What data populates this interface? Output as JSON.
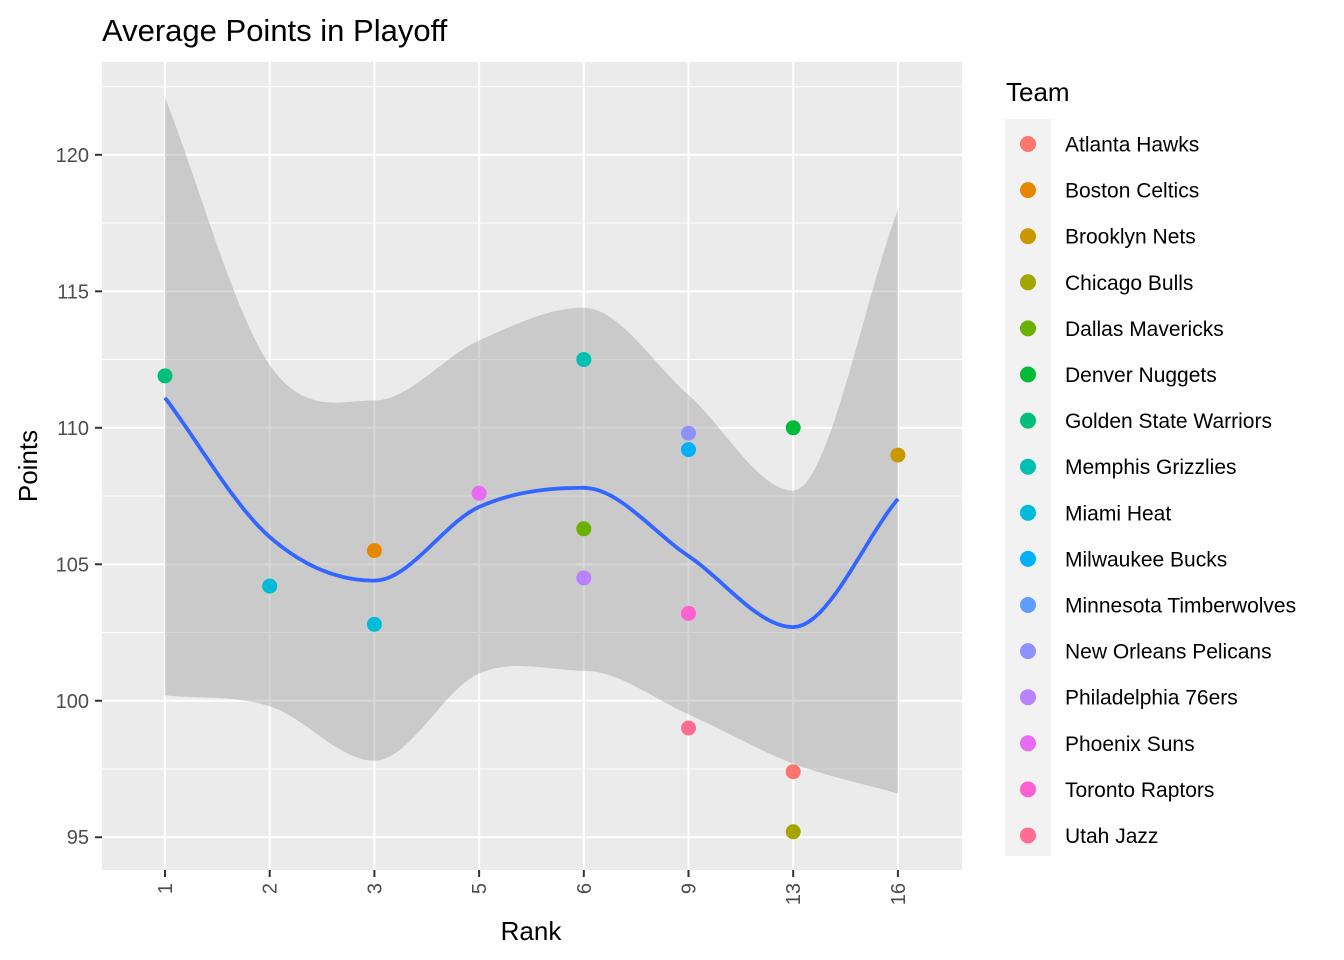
{
  "chart_data": {
    "type": "scatter",
    "title": "Average Points in Playoff",
    "xlabel": "Rank",
    "ylabel": "Points",
    "x_categories": [
      "1",
      "2",
      "3",
      "5",
      "6",
      "9",
      "13",
      "16"
    ],
    "ylim": [
      93.8,
      123.4
    ],
    "y_ticks": [
      95,
      100,
      105,
      110,
      115,
      120
    ],
    "grid": true,
    "legend": {
      "title": "Team",
      "position": "right"
    },
    "series": [
      {
        "name": "Atlanta Hawks",
        "color": "#F8766D",
        "points": [
          {
            "x": "13",
            "y": 97.4
          }
        ]
      },
      {
        "name": "Boston Celtics",
        "color": "#E58700",
        "points": [
          {
            "x": "3",
            "y": 105.5
          }
        ]
      },
      {
        "name": "Brooklyn Nets",
        "color": "#C99800",
        "points": [
          {
            "x": "16",
            "y": 109.0
          }
        ]
      },
      {
        "name": "Chicago Bulls",
        "color": "#A3A500",
        "points": [
          {
            "x": "13",
            "y": 95.2
          }
        ]
      },
      {
        "name": "Dallas Mavericks",
        "color": "#6BB100",
        "points": [
          {
            "x": "6",
            "y": 106.3
          }
        ]
      },
      {
        "name": "Denver Nuggets",
        "color": "#00BA38",
        "points": [
          {
            "x": "13",
            "y": 110.0
          }
        ]
      },
      {
        "name": "Golden State Warriors",
        "color": "#00BF7D",
        "points": [
          {
            "x": "1",
            "y": 111.9
          }
        ]
      },
      {
        "name": "Memphis Grizzlies",
        "color": "#00C0AF",
        "points": [
          {
            "x": "6",
            "y": 112.5
          }
        ]
      },
      {
        "name": "Miami Heat",
        "color": "#00BCD8",
        "points": [
          {
            "x": "2",
            "y": 104.2
          },
          {
            "x": "3",
            "y": 102.8
          }
        ]
      },
      {
        "name": "Milwaukee Bucks",
        "color": "#00B0F6",
        "points": [
          {
            "x": "9",
            "y": 109.2
          }
        ]
      },
      {
        "name": "Minnesota Timberwolves",
        "color": "#619CFF",
        "points": []
      },
      {
        "name": "New Orleans Pelicans",
        "color": "#8F91FF",
        "points": [
          {
            "x": "9",
            "y": 109.8
          }
        ]
      },
      {
        "name": "Philadelphia 76ers",
        "color": "#B983FF",
        "points": [
          {
            "x": "6",
            "y": 104.5
          }
        ]
      },
      {
        "name": "Phoenix Suns",
        "color": "#E76BF3",
        "points": [
          {
            "x": "5",
            "y": 107.6
          }
        ]
      },
      {
        "name": "Toronto Raptors",
        "color": "#FD61D1",
        "points": [
          {
            "x": "9",
            "y": 103.2
          }
        ]
      },
      {
        "name": "Utah Jazz",
        "color": "#FF6C91",
        "points": [
          {
            "x": "9",
            "y": 99.0
          }
        ]
      }
    ],
    "smooth": {
      "color": "#3366FF",
      "band_color": "#999999",
      "x": [
        "1",
        "2",
        "3",
        "5",
        "6",
        "9",
        "13",
        "16"
      ],
      "fit": [
        111.1,
        106.0,
        104.4,
        107.1,
        107.8,
        105.3,
        102.7,
        107.4
      ],
      "lower": [
        100.2,
        99.8,
        97.8,
        101.0,
        101.1,
        99.5,
        97.7,
        96.6
      ],
      "upper": [
        122.1,
        112.3,
        111.0,
        113.2,
        114.4,
        111.2,
        107.7,
        118.0
      ]
    }
  }
}
